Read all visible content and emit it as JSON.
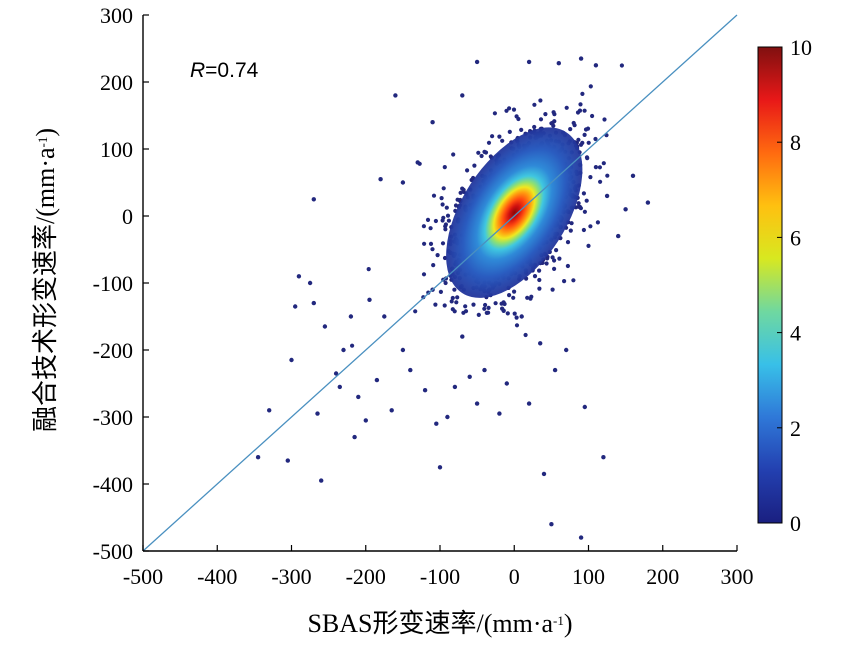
{
  "chart_data": {
    "type": "scatter",
    "title": "",
    "xlabel": "SBAS形变速率/(mm·a",
    "xlabel_sup": "-1",
    "xlabel_end": ")",
    "ylabel": "融合技术形变速率/(mm·a",
    "ylabel_sup": "-1",
    "ylabel_end": ")",
    "xlim": [
      -500,
      300
    ],
    "ylim": [
      -500,
      300
    ],
    "xticks": [
      -500,
      -400,
      -300,
      -200,
      -100,
      0,
      100,
      200,
      300
    ],
    "yticks": [
      -500,
      -400,
      -300,
      -200,
      -100,
      0,
      100,
      200,
      300
    ],
    "xtick_labels": [
      "-500",
      "-400",
      "-300",
      "-200",
      "-100",
      "0",
      "100",
      "200",
      "300"
    ],
    "ytick_labels": [
      "-500",
      "-400",
      "-300",
      "-200",
      "-100",
      "0",
      "100",
      "200",
      "300"
    ],
    "annotation": {
      "italic": "R",
      "text": "=0.74"
    },
    "fit_line": {
      "x": [
        -500,
        300
      ],
      "y": [
        -500,
        300
      ],
      "color": "#4a90c0"
    },
    "density_core": {
      "center": [
        0,
        5
      ],
      "spread_along_main_axis": 60,
      "spread_along_minor_axis": 32,
      "angle_deg": 57
    },
    "outliers": [
      [
        -345,
        -360
      ],
      [
        -330,
        -290
      ],
      [
        -305,
        -365
      ],
      [
        -300,
        -215
      ],
      [
        -295,
        -135
      ],
      [
        -290,
        -90
      ],
      [
        -275,
        -100
      ],
      [
        -270,
        -130
      ],
      [
        -265,
        -295
      ],
      [
        -260,
        -395
      ],
      [
        -255,
        -165
      ],
      [
        -240,
        -235
      ],
      [
        -235,
        -255
      ],
      [
        -230,
        -200
      ],
      [
        -220,
        -150
      ],
      [
        -215,
        -330
      ],
      [
        -210,
        -270
      ],
      [
        -200,
        -305
      ],
      [
        -195,
        -125
      ],
      [
        -185,
        -245
      ],
      [
        -175,
        -150
      ],
      [
        -165,
        -290
      ],
      [
        -160,
        180
      ],
      [
        -150,
        -200
      ],
      [
        -140,
        -230
      ],
      [
        -130,
        80
      ],
      [
        -120,
        -260
      ],
      [
        -110,
        -110
      ],
      [
        -105,
        -310
      ],
      [
        -100,
        -375
      ],
      [
        -90,
        -300
      ],
      [
        -80,
        -255
      ],
      [
        -70,
        -180
      ],
      [
        -60,
        -240
      ],
      [
        -50,
        -280
      ],
      [
        -40,
        -230
      ],
      [
        -20,
        -295
      ],
      [
        -10,
        -250
      ],
      [
        10,
        -150
      ],
      [
        20,
        -280
      ],
      [
        35,
        -190
      ],
      [
        40,
        -385
      ],
      [
        50,
        -460
      ],
      [
        55,
        -230
      ],
      [
        70,
        -200
      ],
      [
        90,
        -480
      ],
      [
        95,
        -285
      ],
      [
        120,
        -360
      ],
      [
        125,
        30
      ],
      [
        140,
        -30
      ],
      [
        150,
        10
      ],
      [
        160,
        60
      ],
      [
        180,
        20
      ],
      [
        -270,
        25
      ],
      [
        -180,
        55
      ],
      [
        -150,
        50
      ],
      [
        -50,
        230
      ],
      [
        20,
        230
      ],
      [
        60,
        228
      ],
      [
        90,
        235
      ],
      [
        110,
        225
      ],
      [
        -110,
        140
      ],
      [
        -70,
        180
      ]
    ],
    "colorbar": {
      "min": 0,
      "max": 10,
      "ticks": [
        0,
        2,
        4,
        6,
        8,
        10
      ],
      "tick_labels": [
        "0",
        "2",
        "4",
        "6",
        "8",
        "10"
      ],
      "colors": [
        "#1a1f80",
        "#2340b0",
        "#2f78d8",
        "#38c0e8",
        "#6fd8a0",
        "#d8e820",
        "#ffc010",
        "#ff6a10",
        "#e81818",
        "#801010"
      ]
    }
  }
}
